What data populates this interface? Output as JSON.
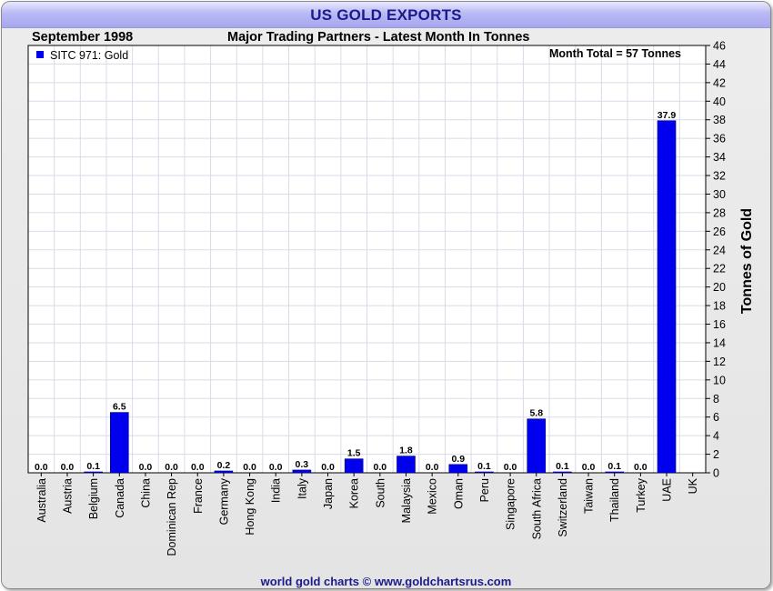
{
  "header": {
    "title": "US GOLD EXPORTS",
    "date": "September 1998",
    "subtitle": "Major Trading Partners - Latest Month In Tonnes",
    "footer": "world gold charts © www.goldchartsrus.com"
  },
  "colors": {
    "bar": "#0000ee",
    "grid": "#d8dbe8",
    "title_text": "#1a1a8c"
  },
  "chart_data": {
    "type": "bar",
    "title": "US GOLD EXPORTS",
    "subtitle": "Major Trading Partners - Latest Month In Tonnes",
    "ylabel": "Tonnes of Gold",
    "xlabel": "",
    "ylim": [
      0,
      46
    ],
    "ytick_step": 2,
    "grid": true,
    "legend": {
      "position": "top-left",
      "entries": [
        "SITC 971: Gold"
      ]
    },
    "annotation": "Month Total = 57 Tonnes",
    "categories": [
      "Australia",
      "Austria",
      "Belgium",
      "Canada",
      "China",
      "Dominican Rep",
      "France",
      "Germany",
      "Hong Kong",
      "India",
      "Italy",
      "Japan",
      "Korea",
      "South",
      "Malaysia",
      "Mexico",
      "Oman",
      "Peru",
      "Singapore",
      "South Africa",
      "Switzerland",
      "Taiwan",
      "Thailand",
      "Turkey",
      "UAE",
      "UK"
    ],
    "values": [
      0.0,
      0.0,
      0.1,
      6.5,
      0.0,
      0.0,
      0.0,
      0.2,
      0.0,
      0.0,
      0.3,
      0.0,
      1.5,
      0.0,
      1.8,
      0.0,
      0.9,
      0.1,
      0.0,
      5.8,
      0.1,
      0.0,
      0.1,
      0.0,
      37.9,
      null
    ],
    "value_labels": [
      "0.0",
      "0.0",
      "0.1",
      "6.5",
      "0.0",
      "0.0",
      "0.0",
      "0.2",
      "0.0",
      "0.0",
      "0.3",
      "0.0",
      "1.5",
      "0.0",
      "1.8",
      "0.0",
      "0.9",
      "0.1",
      "0.0",
      "5.8",
      "0.1",
      "0.0",
      "0.1",
      "0.0",
      "37.9",
      ""
    ]
  }
}
